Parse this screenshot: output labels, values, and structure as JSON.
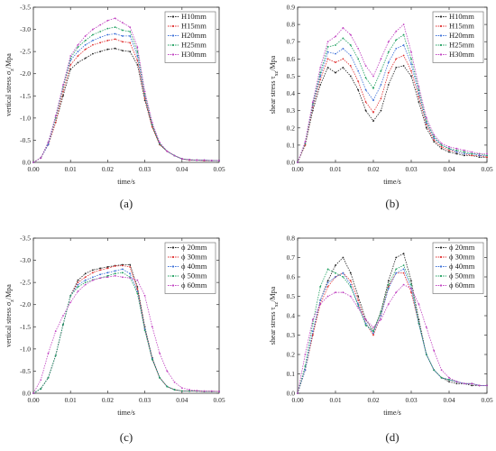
{
  "chart_data": [
    {
      "type": "line",
      "panel_label": "(a)",
      "xlabel": "time/s",
      "ylabel": "vertical stress σ",
      "ylabel_sub": "z",
      "ylabel_unit": "/Mpa",
      "xlim": [
        0,
        0.05
      ],
      "ylim": [
        0,
        -3.5
      ],
      "y_inverted": true,
      "xticks": [
        0.0,
        0.01,
        0.02,
        0.03,
        0.04,
        0.05
      ],
      "xtick_labels": [
        "0.00",
        "0.01",
        "0.02",
        "0.03",
        "0.04",
        "0.05"
      ],
      "yticks": [
        0,
        -0.5,
        -1.0,
        -1.5,
        -2.0,
        -2.5,
        -3.0,
        -3.5
      ],
      "ytick_labels": [
        "0.0",
        "-0.5",
        "-1.0",
        "-1.5",
        "-2.0",
        "-2.5",
        "-3.0",
        "-3.5"
      ],
      "legend_position": "top-right",
      "grid": false,
      "x": [
        0.0,
        0.002,
        0.004,
        0.006,
        0.008,
        0.01,
        0.012,
        0.014,
        0.016,
        0.018,
        0.02,
        0.022,
        0.024,
        0.026,
        0.028,
        0.03,
        0.032,
        0.034,
        0.036,
        0.038,
        0.04,
        0.042,
        0.044,
        0.046,
        0.048,
        0.05
      ],
      "series": [
        {
          "name": "H10mm",
          "color": "#222222",
          "values": [
            0.0,
            -0.1,
            -0.4,
            -0.9,
            -1.5,
            -2.1,
            -2.25,
            -2.35,
            -2.45,
            -2.5,
            -2.55,
            -2.57,
            -2.52,
            -2.5,
            -2.2,
            -1.4,
            -0.8,
            -0.4,
            -0.25,
            -0.15,
            -0.08,
            -0.05,
            -0.05,
            -0.04,
            -0.04,
            -0.04
          ]
        },
        {
          "name": "H15mm",
          "color": "#e03030",
          "values": [
            0.0,
            -0.1,
            -0.4,
            -0.9,
            -1.6,
            -2.2,
            -2.4,
            -2.55,
            -2.65,
            -2.7,
            -2.75,
            -2.78,
            -2.72,
            -2.7,
            -2.3,
            -1.45,
            -0.8,
            -0.4,
            -0.25,
            -0.15,
            -0.08,
            -0.05,
            -0.05,
            -0.04,
            -0.04,
            -0.04
          ]
        },
        {
          "name": "H20mm",
          "color": "#3a6fd8",
          "values": [
            0.0,
            -0.1,
            -0.4,
            -1.0,
            -1.7,
            -2.3,
            -2.5,
            -2.65,
            -2.75,
            -2.82,
            -2.88,
            -2.9,
            -2.85,
            -2.85,
            -2.4,
            -1.5,
            -0.85,
            -0.42,
            -0.25,
            -0.15,
            -0.08,
            -0.06,
            -0.05,
            -0.05,
            -0.04,
            -0.04
          ]
        },
        {
          "name": "H25mm",
          "color": "#20a060",
          "values": [
            0.0,
            -0.1,
            -0.45,
            -1.0,
            -1.7,
            -2.35,
            -2.6,
            -2.75,
            -2.88,
            -2.95,
            -3.02,
            -3.05,
            -2.98,
            -2.95,
            -2.5,
            -1.55,
            -0.85,
            -0.42,
            -0.25,
            -0.15,
            -0.08,
            -0.06,
            -0.05,
            -0.05,
            -0.04,
            -0.04
          ]
        },
        {
          "name": "H30mm",
          "color": "#c040c0",
          "values": [
            0.0,
            -0.1,
            -0.45,
            -1.05,
            -1.75,
            -2.4,
            -2.65,
            -2.85,
            -3.0,
            -3.1,
            -3.2,
            -3.25,
            -3.15,
            -3.05,
            -2.6,
            -1.6,
            -0.9,
            -0.45,
            -0.25,
            -0.15,
            -0.08,
            -0.06,
            -0.05,
            -0.05,
            -0.04,
            -0.04
          ]
        }
      ]
    },
    {
      "type": "line",
      "panel_label": "(b)",
      "xlabel": "time/s",
      "ylabel": "shear stress τ",
      "ylabel_sub": "xz",
      "ylabel_unit": "/Mpa",
      "xlim": [
        0,
        0.05
      ],
      "ylim": [
        0,
        0.9
      ],
      "y_inverted": false,
      "xticks": [
        0.0,
        0.01,
        0.02,
        0.03,
        0.04,
        0.05
      ],
      "xtick_labels": [
        "0.00",
        "0.01",
        "0.02",
        "0.03",
        "0.04",
        "0.05"
      ],
      "yticks": [
        0.0,
        0.1,
        0.2,
        0.3,
        0.4,
        0.5,
        0.6,
        0.7,
        0.8,
        0.9
      ],
      "ytick_labels": [
        "0.0",
        "0.1",
        "0.2",
        "0.3",
        "0.4",
        "0.5",
        "0.6",
        "0.7",
        "0.8",
        "0.9"
      ],
      "legend_position": "top-right",
      "grid": false,
      "x": [
        0.0,
        0.002,
        0.004,
        0.006,
        0.008,
        0.01,
        0.012,
        0.014,
        0.016,
        0.018,
        0.02,
        0.022,
        0.024,
        0.026,
        0.028,
        0.03,
        0.032,
        0.034,
        0.036,
        0.038,
        0.04,
        0.042,
        0.044,
        0.046,
        0.048,
        0.05
      ],
      "series": [
        {
          "name": "H10mm",
          "color": "#222222",
          "values": [
            0.0,
            0.1,
            0.3,
            0.45,
            0.55,
            0.52,
            0.55,
            0.5,
            0.42,
            0.3,
            0.24,
            0.3,
            0.45,
            0.55,
            0.56,
            0.5,
            0.35,
            0.2,
            0.12,
            0.08,
            0.06,
            0.05,
            0.04,
            0.04,
            0.03,
            0.03
          ]
        },
        {
          "name": "H15mm",
          "color": "#e03030",
          "values": [
            0.0,
            0.1,
            0.32,
            0.48,
            0.6,
            0.58,
            0.6,
            0.56,
            0.47,
            0.35,
            0.29,
            0.37,
            0.52,
            0.6,
            0.62,
            0.53,
            0.38,
            0.22,
            0.13,
            0.09,
            0.07,
            0.06,
            0.05,
            0.04,
            0.04,
            0.03
          ]
        },
        {
          "name": "H20mm",
          "color": "#3a6fd8",
          "values": [
            0.0,
            0.11,
            0.33,
            0.5,
            0.64,
            0.63,
            0.66,
            0.62,
            0.53,
            0.42,
            0.36,
            0.45,
            0.58,
            0.66,
            0.68,
            0.57,
            0.4,
            0.23,
            0.14,
            0.1,
            0.08,
            0.06,
            0.05,
            0.05,
            0.04,
            0.04
          ]
        },
        {
          "name": "H25mm",
          "color": "#20a060",
          "values": [
            0.0,
            0.11,
            0.34,
            0.52,
            0.67,
            0.68,
            0.72,
            0.68,
            0.6,
            0.49,
            0.43,
            0.53,
            0.64,
            0.71,
            0.74,
            0.6,
            0.42,
            0.24,
            0.15,
            0.1,
            0.08,
            0.07,
            0.06,
            0.05,
            0.05,
            0.04
          ]
        },
        {
          "name": "H30mm",
          "color": "#c040c0",
          "values": [
            0.0,
            0.12,
            0.35,
            0.55,
            0.7,
            0.73,
            0.78,
            0.74,
            0.66,
            0.56,
            0.5,
            0.6,
            0.7,
            0.76,
            0.8,
            0.64,
            0.44,
            0.26,
            0.16,
            0.11,
            0.09,
            0.08,
            0.07,
            0.06,
            0.05,
            0.05
          ]
        }
      ]
    },
    {
      "type": "line",
      "panel_label": "(c)",
      "xlabel": "time/s",
      "ylabel": "vertical stress σ",
      "ylabel_sub": "z",
      "ylabel_unit": "/Mpa",
      "xlim": [
        0,
        0.05
      ],
      "ylim": [
        0,
        -3.5
      ],
      "y_inverted": true,
      "xticks": [
        0.0,
        0.01,
        0.02,
        0.03,
        0.04,
        0.05
      ],
      "xtick_labels": [
        "0.00",
        "0.01",
        "0.02",
        "0.03",
        "0.04",
        "0.05"
      ],
      "yticks": [
        0,
        -0.5,
        -1.0,
        -1.5,
        -2.0,
        -2.5,
        -3.0,
        -3.5
      ],
      "ytick_labels": [
        "0.0",
        "-0.5",
        "-1.0",
        "-1.5",
        "-2.0",
        "-2.5",
        "-3.0",
        "-3.5"
      ],
      "legend_position": "top-right",
      "grid": false,
      "x": [
        0.0,
        0.002,
        0.004,
        0.006,
        0.008,
        0.01,
        0.012,
        0.014,
        0.016,
        0.018,
        0.02,
        0.022,
        0.024,
        0.026,
        0.028,
        0.03,
        0.032,
        0.034,
        0.036,
        0.038,
        0.04,
        0.042,
        0.044,
        0.046,
        0.048,
        0.05
      ],
      "series": [
        {
          "name": "ϕ 20mm",
          "color": "#222222",
          "values": [
            0.0,
            -0.1,
            -0.35,
            -0.85,
            -1.55,
            -2.2,
            -2.55,
            -2.7,
            -2.78,
            -2.82,
            -2.85,
            -2.88,
            -2.9,
            -2.9,
            -2.4,
            -1.5,
            -0.8,
            -0.35,
            -0.15,
            -0.08,
            -0.05,
            -0.05,
            -0.05,
            -0.04,
            -0.04,
            -0.04
          ]
        },
        {
          "name": "ϕ 30mm",
          "color": "#e03030",
          "values": [
            0.0,
            -0.1,
            -0.35,
            -0.85,
            -1.55,
            -2.2,
            -2.5,
            -2.62,
            -2.72,
            -2.78,
            -2.82,
            -2.87,
            -2.88,
            -2.85,
            -2.35,
            -1.45,
            -0.78,
            -0.35,
            -0.15,
            -0.08,
            -0.05,
            -0.05,
            -0.05,
            -0.04,
            -0.04,
            -0.04
          ]
        },
        {
          "name": "ϕ 40mm",
          "color": "#3a6fd8",
          "values": [
            0.0,
            -0.1,
            -0.35,
            -0.85,
            -1.55,
            -2.2,
            -2.45,
            -2.55,
            -2.62,
            -2.68,
            -2.72,
            -2.76,
            -2.8,
            -2.7,
            -2.3,
            -1.45,
            -0.78,
            -0.35,
            -0.15,
            -0.08,
            -0.05,
            -0.05,
            -0.05,
            -0.04,
            -0.04,
            -0.04
          ]
        },
        {
          "name": "ϕ 50mm",
          "color": "#20a060",
          "values": [
            0.0,
            -0.1,
            -0.35,
            -0.85,
            -1.55,
            -2.2,
            -2.4,
            -2.5,
            -2.56,
            -2.6,
            -2.65,
            -2.7,
            -2.72,
            -2.62,
            -2.25,
            -1.42,
            -0.76,
            -0.35,
            -0.15,
            -0.08,
            -0.05,
            -0.05,
            -0.05,
            -0.04,
            -0.04,
            -0.04
          ]
        },
        {
          "name": "ϕ 60mm",
          "color": "#c040c0",
          "values": [
            0.0,
            -0.3,
            -0.9,
            -1.4,
            -1.75,
            -2.05,
            -2.3,
            -2.45,
            -2.55,
            -2.6,
            -2.62,
            -2.65,
            -2.62,
            -2.6,
            -2.55,
            -2.2,
            -1.5,
            -0.9,
            -0.5,
            -0.25,
            -0.12,
            -0.08,
            -0.06,
            -0.05,
            -0.05,
            -0.04
          ]
        }
      ]
    },
    {
      "type": "line",
      "panel_label": "(d)",
      "xlabel": "time/s",
      "ylabel": "shear stress τ",
      "ylabel_sub": "xz",
      "ylabel_unit": "/Mpa",
      "xlim": [
        0,
        0.05
      ],
      "ylim": [
        0,
        0.8
      ],
      "y_inverted": false,
      "xticks": [
        0.0,
        0.01,
        0.02,
        0.03,
        0.04,
        0.05
      ],
      "xtick_labels": [
        "0.00",
        "0.01",
        "0.02",
        "0.03",
        "0.04",
        "0.05"
      ],
      "yticks": [
        0.0,
        0.1,
        0.2,
        0.3,
        0.4,
        0.5,
        0.6,
        0.7,
        0.8
      ],
      "ytick_labels": [
        "0.0",
        "0.1",
        "0.2",
        "0.3",
        "0.4",
        "0.5",
        "0.6",
        "0.7",
        "0.8"
      ],
      "legend_position": "top-right",
      "grid": false,
      "x": [
        0.0,
        0.002,
        0.004,
        0.006,
        0.008,
        0.01,
        0.012,
        0.014,
        0.016,
        0.018,
        0.02,
        0.022,
        0.024,
        0.026,
        0.028,
        0.03,
        0.032,
        0.034,
        0.036,
        0.038,
        0.04,
        0.042,
        0.044,
        0.046,
        0.048,
        0.05
      ],
      "series": [
        {
          "name": "ϕ 20mm",
          "color": "#222222",
          "values": [
            0.0,
            0.12,
            0.3,
            0.48,
            0.58,
            0.66,
            0.7,
            0.62,
            0.5,
            0.38,
            0.32,
            0.42,
            0.58,
            0.7,
            0.72,
            0.58,
            0.38,
            0.2,
            0.12,
            0.08,
            0.06,
            0.05,
            0.05,
            0.04,
            0.04,
            0.04
          ]
        },
        {
          "name": "ϕ 30mm",
          "color": "#e03030",
          "values": [
            0.0,
            0.12,
            0.3,
            0.46,
            0.55,
            0.6,
            0.62,
            0.58,
            0.48,
            0.36,
            0.3,
            0.4,
            0.55,
            0.62,
            0.62,
            0.52,
            0.36,
            0.2,
            0.12,
            0.08,
            0.07,
            0.06,
            0.05,
            0.05,
            0.04,
            0.04
          ]
        },
        {
          "name": "ϕ 40mm",
          "color": "#3a6fd8",
          "values": [
            0.0,
            0.12,
            0.32,
            0.48,
            0.57,
            0.6,
            0.62,
            0.56,
            0.46,
            0.36,
            0.31,
            0.4,
            0.54,
            0.62,
            0.64,
            0.54,
            0.36,
            0.2,
            0.12,
            0.08,
            0.07,
            0.06,
            0.05,
            0.05,
            0.04,
            0.04
          ]
        },
        {
          "name": "ϕ 50mm",
          "color": "#20a060",
          "values": [
            0.0,
            0.14,
            0.36,
            0.55,
            0.64,
            0.62,
            0.6,
            0.55,
            0.45,
            0.35,
            0.32,
            0.42,
            0.56,
            0.64,
            0.66,
            0.56,
            0.36,
            0.2,
            0.12,
            0.08,
            0.07,
            0.06,
            0.05,
            0.05,
            0.04,
            0.04
          ]
        },
        {
          "name": "ϕ 60mm",
          "color": "#c040c0",
          "values": [
            0.0,
            0.2,
            0.38,
            0.46,
            0.5,
            0.52,
            0.52,
            0.5,
            0.44,
            0.38,
            0.34,
            0.38,
            0.46,
            0.52,
            0.56,
            0.54,
            0.46,
            0.34,
            0.22,
            0.12,
            0.08,
            0.06,
            0.05,
            0.05,
            0.04,
            0.04
          ]
        }
      ]
    }
  ]
}
